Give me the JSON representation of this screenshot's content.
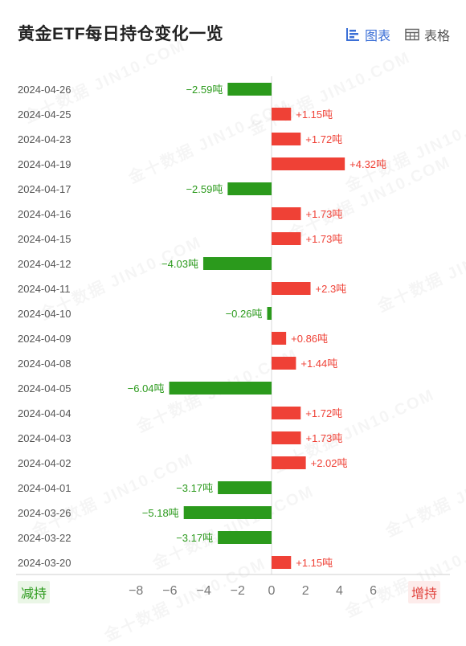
{
  "header": {
    "title": "黄金ETF每日持仓变化一览",
    "tabs": [
      {
        "label": "图表",
        "icon": "bar-chart-icon",
        "active": true
      },
      {
        "label": "表格",
        "icon": "table-icon",
        "active": false
      }
    ]
  },
  "watermark": "金十数据 JIN10.COM",
  "legend": {
    "decrease_label": "减持",
    "increase_label": "增持"
  },
  "colors": {
    "positive": "#ef4136",
    "negative": "#2b9a1c",
    "accent": "#3b6fd6"
  },
  "chart_data": {
    "type": "bar",
    "orientation": "horizontal",
    "title": "黄金ETF每日持仓变化一览",
    "unit": "吨",
    "xlim": [
      -8,
      8
    ],
    "xticks": [
      -8,
      -6,
      -4,
      -2,
      0,
      2,
      4,
      6
    ],
    "categories": [
      "2024-04-26",
      "2024-04-25",
      "2024-04-23",
      "2024-04-19",
      "2024-04-17",
      "2024-04-16",
      "2024-04-15",
      "2024-04-12",
      "2024-04-11",
      "2024-04-10",
      "2024-04-09",
      "2024-04-08",
      "2024-04-05",
      "2024-04-04",
      "2024-04-03",
      "2024-04-02",
      "2024-04-01",
      "2024-03-26",
      "2024-03-22",
      "2024-03-20"
    ],
    "values": [
      -2.59,
      1.15,
      1.72,
      4.32,
      -2.59,
      1.73,
      1.73,
      -4.03,
      2.3,
      -0.26,
      0.86,
      1.44,
      -6.04,
      1.72,
      1.73,
      2.02,
      -3.17,
      -5.18,
      -3.17,
      1.15
    ],
    "value_labels": [
      "−2.59吨",
      "+1.15吨",
      "+1.72吨",
      "+4.32吨",
      "−2.59吨",
      "+1.73吨",
      "+1.73吨",
      "−4.03吨",
      "+2.3吨",
      "−0.26吨",
      "+0.86吨",
      "+1.44吨",
      "−6.04吨",
      "+1.72吨",
      "+1.73吨",
      "+2.02吨",
      "−3.17吨",
      "−5.18吨",
      "−3.17吨",
      "+1.15吨"
    ],
    "tick_labels": [
      "−8",
      "−6",
      "−4",
      "−2",
      "0",
      "2",
      "4",
      "6"
    ]
  }
}
